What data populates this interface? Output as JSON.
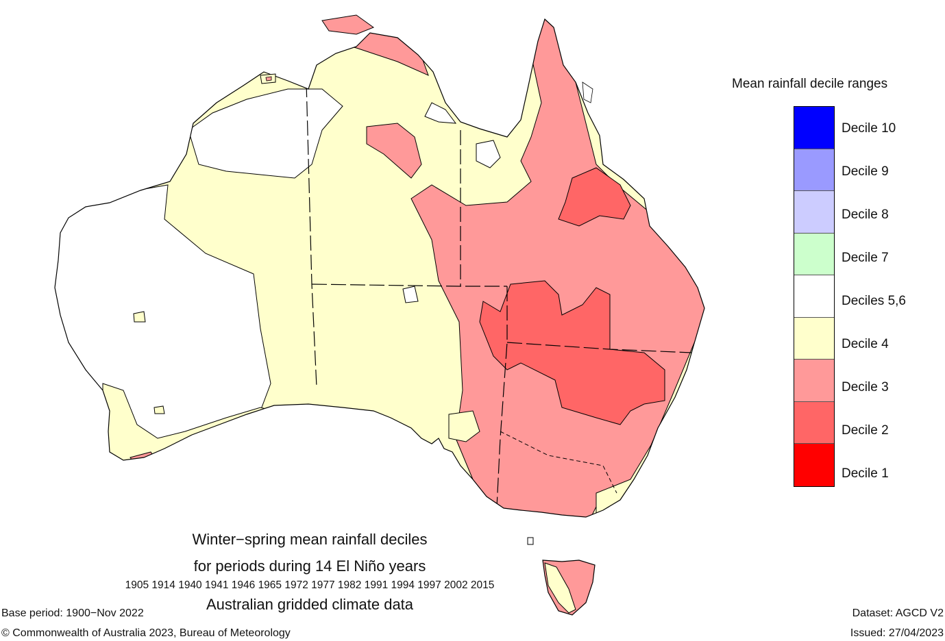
{
  "title": {
    "line1": "Winter−spring mean rainfall deciles",
    "line2": "for periods during 14 El Niño years",
    "years": "1905 1914 1940 1941 1946 1965 1972 1977 1982 1991 1994 1997 2002 2015",
    "line4": "Australian gridded climate data"
  },
  "footer": {
    "base_period": "Base period: 1900−Nov 2022",
    "copyright": "© Commonwealth of Australia 2023, Bureau of Meteorology",
    "dataset": "Dataset: AGCD V2",
    "issued": "Issued: 27/04/2023"
  },
  "legend": {
    "title": "Mean rainfall decile ranges",
    "items": [
      {
        "label": "Decile 10",
        "color": "#0000ff"
      },
      {
        "label": "Decile 9",
        "color": "#9a9aff"
      },
      {
        "label": "Decile 8",
        "color": "#ccccff"
      },
      {
        "label": "Decile 7",
        "color": "#ccffcc"
      },
      {
        "label": "Deciles 5,6",
        "color": "#ffffff"
      },
      {
        "label": "Decile 4",
        "color": "#ffffcc"
      },
      {
        "label": "Decile 3",
        "color": "#ff9999"
      },
      {
        "label": "Decile 2",
        "color": "#ff6666"
      },
      {
        "label": "Decile 1",
        "color": "#ff0000"
      }
    ]
  }
}
